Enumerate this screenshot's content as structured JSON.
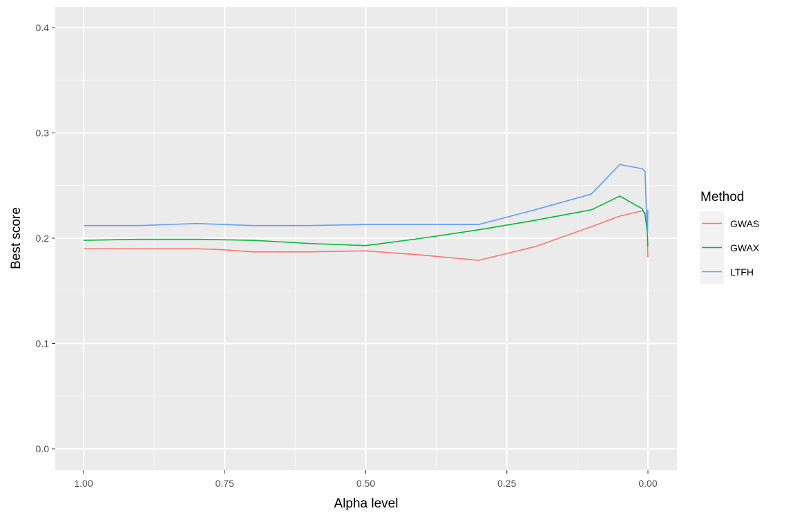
{
  "chart_data": {
    "type": "line",
    "title": "",
    "xlabel": "Alpha level",
    "ylabel": "Best score",
    "x_reversed": true,
    "xlim": [
      1.0,
      0.0
    ],
    "ylim": [
      0.0,
      0.4
    ],
    "x_ticks": [
      {
        "value": 1.0,
        "label": "1.00"
      },
      {
        "value": 0.75,
        "label": "0.75"
      },
      {
        "value": 0.5,
        "label": "0.50"
      },
      {
        "value": 0.25,
        "label": "0.25"
      },
      {
        "value": 0.0,
        "label": "0.00"
      }
    ],
    "y_ticks": [
      {
        "value": 0.0,
        "label": "0.0"
      },
      {
        "value": 0.1,
        "label": "0.1"
      },
      {
        "value": 0.2,
        "label": "0.2"
      },
      {
        "value": 0.3,
        "label": "0.3"
      },
      {
        "value": 0.4,
        "label": "0.4"
      }
    ],
    "grid": true,
    "legend": {
      "title": "Method",
      "position": "right"
    },
    "series": [
      {
        "name": "GWAS",
        "color": "#F8766D",
        "points": [
          [
            1.0,
            0.19
          ],
          [
            0.9,
            0.19
          ],
          [
            0.8,
            0.19
          ],
          [
            0.75,
            0.189
          ],
          [
            0.7,
            0.187
          ],
          [
            0.6,
            0.187
          ],
          [
            0.5,
            0.188
          ],
          [
            0.4,
            0.184
          ],
          [
            0.3,
            0.179
          ],
          [
            0.2,
            0.192
          ],
          [
            0.1,
            0.211
          ],
          [
            0.05,
            0.221
          ],
          [
            0.01,
            0.226
          ],
          [
            0.005,
            0.224
          ],
          [
            0.001,
            0.205
          ],
          [
            0.0005,
            0.195
          ],
          [
            0.0001,
            0.182
          ]
        ]
      },
      {
        "name": "GWAX",
        "color": "#00BA38",
        "points": [
          [
            1.0,
            0.198
          ],
          [
            0.9,
            0.199
          ],
          [
            0.8,
            0.199
          ],
          [
            0.7,
            0.198
          ],
          [
            0.6,
            0.195
          ],
          [
            0.5,
            0.193
          ],
          [
            0.4,
            0.2
          ],
          [
            0.3,
            0.208
          ],
          [
            0.2,
            0.217
          ],
          [
            0.1,
            0.227
          ],
          [
            0.05,
            0.24
          ],
          [
            0.01,
            0.228
          ],
          [
            0.005,
            0.222
          ],
          [
            0.001,
            0.205
          ],
          [
            0.0005,
            0.198
          ],
          [
            0.0001,
            0.192
          ]
        ]
      },
      {
        "name": "LTFH",
        "color": "#619CFF",
        "points": [
          [
            1.0,
            0.212
          ],
          [
            0.9,
            0.212
          ],
          [
            0.8,
            0.214
          ],
          [
            0.7,
            0.212
          ],
          [
            0.6,
            0.212
          ],
          [
            0.5,
            0.213
          ],
          [
            0.4,
            0.213
          ],
          [
            0.3,
            0.213
          ],
          [
            0.2,
            0.227
          ],
          [
            0.1,
            0.242
          ],
          [
            0.05,
            0.27
          ],
          [
            0.01,
            0.266
          ],
          [
            0.005,
            0.263
          ],
          [
            0.003,
            0.23
          ],
          [
            0.001,
            0.21
          ],
          [
            0.0005,
            0.205
          ],
          [
            0.0001,
            0.227
          ]
        ]
      }
    ]
  }
}
